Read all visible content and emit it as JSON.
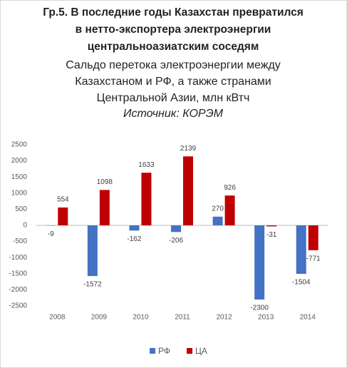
{
  "chart_data": {
    "type": "bar",
    "title": [
      "Гр.5. В последние годы Казахстан превратился",
      "в нетто-экспортера электроэнергии",
      "центральноазиатским соседям"
    ],
    "subtitle": [
      "Сальдо перетока электроэнергии между",
      "Казахстаном и РФ, а также странами",
      "Центральной Азии, млн кВтч"
    ],
    "source": "Источник: КОРЭМ",
    "categories": [
      "2008",
      "2009",
      "2010",
      "2011",
      "2012",
      "2013",
      "2014"
    ],
    "series": [
      {
        "name": "РФ",
        "color": "#4472c4",
        "values": [
          -9,
          -1572,
          -162,
          -206,
          270,
          -2300,
          -1504
        ]
      },
      {
        "name": "ЦА",
        "color": "#c00000",
        "values": [
          554,
          1098,
          1633,
          2139,
          926,
          -31,
          -771
        ]
      }
    ],
    "ylim": [
      -2500,
      2500
    ],
    "yticks": [
      -2500,
      -2000,
      -1500,
      -1000,
      -500,
      0,
      500,
      1000,
      1500,
      2000,
      2500
    ],
    "grid": false,
    "legend": "bottom"
  }
}
